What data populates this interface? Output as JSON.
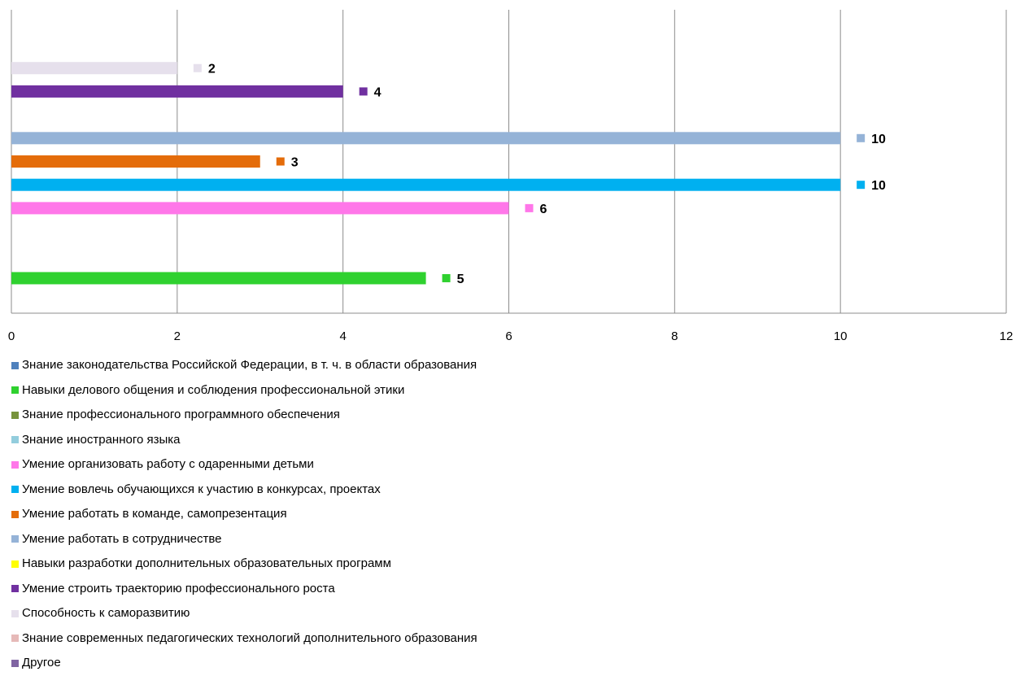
{
  "chart_data": {
    "type": "bar",
    "orientation": "horizontal",
    "xlim": [
      0,
      12
    ],
    "x_ticks": [
      0,
      2,
      4,
      6,
      8,
      10,
      12
    ],
    "grid": "vertical",
    "legend_position": "bottom",
    "series": [
      {
        "name": "Знание законодательства Российской Федерации, в т. ч. в области образования",
        "value": null,
        "color": "#4F81BD"
      },
      {
        "name": "Навыки делового общения и соблюдения профессиональной этики",
        "value": 5,
        "color": "#2FD12F"
      },
      {
        "name": "Знание профессионального программного обеспечения",
        "value": null,
        "color": "#77933C"
      },
      {
        "name": "Знание иностранного языка",
        "value": null,
        "color": "#93CDDD"
      },
      {
        "name": "Умение организовать работу с одаренными детьми",
        "value": 6,
        "color": "#FF77E9"
      },
      {
        "name": "Умение вовлечь обучающихся к участию в конкурсах, проектах",
        "value": 10,
        "color": "#00B0F0"
      },
      {
        "name": "Умение работать в команде, самопрезентация",
        "value": 3,
        "color": "#E46C0A"
      },
      {
        "name": "Умение работать в сотрудничестве",
        "value": 10,
        "color": "#95B3D7"
      },
      {
        "name": "Навыки разработки дополнительных образовательных программ",
        "value": null,
        "color": "#FFFF00"
      },
      {
        "name": "Умение строить траекторию профессионального роста",
        "value": 4,
        "color": "#7030A0"
      },
      {
        "name": "Способность к саморазвитию",
        "value": 2,
        "color": "#E6E0EC"
      },
      {
        "name": "Знание современных педагогических технологий дополнительного образования",
        "value": null,
        "color": "#E6B9B8"
      },
      {
        "name": "Другое",
        "value": null,
        "color": "#8064A2"
      }
    ]
  }
}
